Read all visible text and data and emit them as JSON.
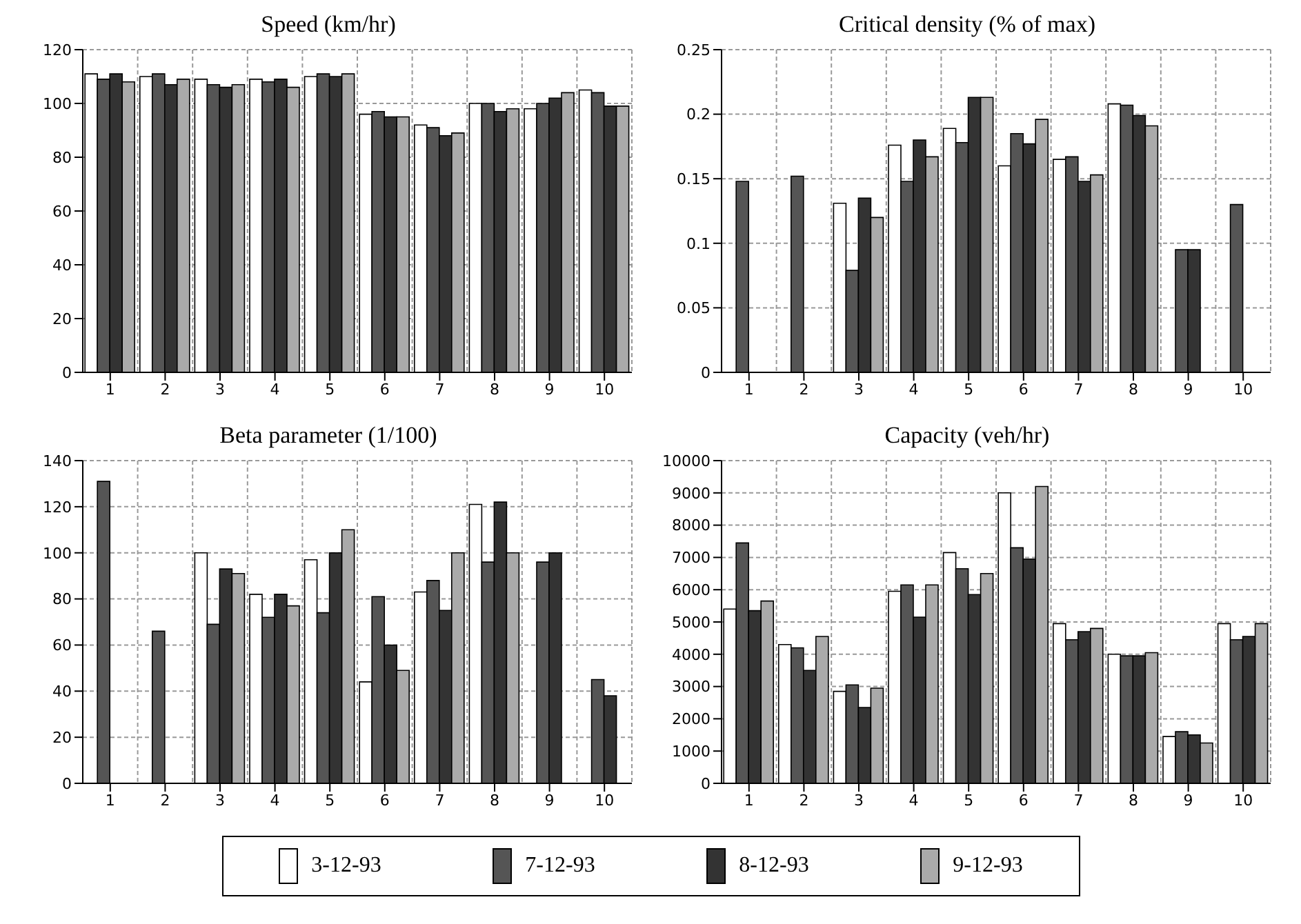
{
  "chart_data": [
    {
      "type": "bar",
      "title": "Speed (km/hr)",
      "categories": [
        "1",
        "2",
        "3",
        "4",
        "5",
        "6",
        "7",
        "8",
        "9",
        "10"
      ],
      "ylim": [
        0,
        120
      ],
      "yticks": [
        0,
        20,
        40,
        60,
        80,
        100,
        120
      ],
      "grid": true,
      "series": [
        {
          "color": "#ffffff",
          "values": [
            111,
            110,
            109,
            109,
            110,
            96,
            92,
            100,
            98,
            105
          ]
        },
        {
          "color": "#555555",
          "values": [
            109,
            111,
            107,
            108,
            111,
            97,
            91,
            100,
            100,
            104
          ]
        },
        {
          "color": "#333333",
          "values": [
            111,
            107,
            106,
            109,
            110,
            95,
            88,
            97,
            102,
            99
          ]
        },
        {
          "color": "#aaaaaa",
          "values": [
            108,
            109,
            107,
            106,
            111,
            95,
            89,
            98,
            104,
            99
          ]
        }
      ]
    },
    {
      "type": "bar",
      "title": "Critical density (% of max)",
      "categories": [
        "1",
        "2",
        "3",
        "4",
        "5",
        "6",
        "7",
        "8",
        "9",
        "10"
      ],
      "ylim": [
        0,
        0.25
      ],
      "yticks": [
        0,
        0.05,
        0.1,
        0.15,
        0.2,
        0.25
      ],
      "grid": true,
      "series": [
        {
          "color": "#ffffff",
          "values": [
            null,
            null,
            0.131,
            0.176,
            0.189,
            0.16,
            0.165,
            0.208,
            null,
            null
          ]
        },
        {
          "color": "#555555",
          "values": [
            0.148,
            0.152,
            0.079,
            0.148,
            0.178,
            0.185,
            0.167,
            0.207,
            0.095,
            0.13
          ]
        },
        {
          "color": "#333333",
          "values": [
            null,
            null,
            0.135,
            0.18,
            0.213,
            0.177,
            0.148,
            0.199,
            0.095,
            null
          ]
        },
        {
          "color": "#aaaaaa",
          "values": [
            null,
            null,
            0.12,
            0.167,
            0.213,
            0.196,
            0.153,
            0.191,
            null,
            null
          ]
        }
      ]
    },
    {
      "type": "bar",
      "title": "Beta parameter (1/100)",
      "categories": [
        "1",
        "2",
        "3",
        "4",
        "5",
        "6",
        "7",
        "8",
        "9",
        "10"
      ],
      "ylim": [
        0,
        140
      ],
      "yticks": [
        0,
        20,
        40,
        60,
        80,
        100,
        120,
        140
      ],
      "grid": true,
      "series": [
        {
          "color": "#ffffff",
          "values": [
            null,
            null,
            100,
            82,
            97,
            44,
            83,
            121,
            null,
            null
          ]
        },
        {
          "color": "#555555",
          "values": [
            131,
            66,
            69,
            72,
            74,
            81,
            88,
            96,
            96,
            45
          ]
        },
        {
          "color": "#333333",
          "values": [
            null,
            null,
            93,
            82,
            100,
            60,
            75,
            122,
            100,
            38
          ]
        },
        {
          "color": "#aaaaaa",
          "values": [
            null,
            null,
            91,
            77,
            110,
            49,
            100,
            100,
            null,
            null
          ]
        }
      ]
    },
    {
      "type": "bar",
      "title": "Capacity (veh/hr)",
      "categories": [
        "1",
        "2",
        "3",
        "4",
        "5",
        "6",
        "7",
        "8",
        "9",
        "10"
      ],
      "ylim": [
        0,
        10000
      ],
      "yticks": [
        0,
        1000,
        2000,
        3000,
        4000,
        5000,
        6000,
        7000,
        8000,
        9000,
        10000
      ],
      "grid": true,
      "legend": "bottom",
      "series": [
        {
          "name": "3-12-93",
          "color": "#ffffff",
          "values": [
            5400,
            4300,
            2850,
            5950,
            7150,
            9000,
            4950,
            4000,
            1450,
            4950
          ]
        },
        {
          "name": "7-12-93",
          "color": "#555555",
          "values": [
            7450,
            4200,
            3050,
            6150,
            6650,
            7300,
            4450,
            3950,
            1600,
            4450
          ]
        },
        {
          "name": "8-12-93",
          "color": "#333333",
          "values": [
            5350,
            3500,
            2350,
            5150,
            5850,
            6950,
            4700,
            3950,
            1500,
            4550
          ]
        },
        {
          "name": "9-12-93",
          "color": "#aaaaaa",
          "values": [
            5650,
            4550,
            2950,
            6150,
            6500,
            9200,
            4800,
            4050,
            1250,
            4950
          ]
        }
      ]
    }
  ]
}
